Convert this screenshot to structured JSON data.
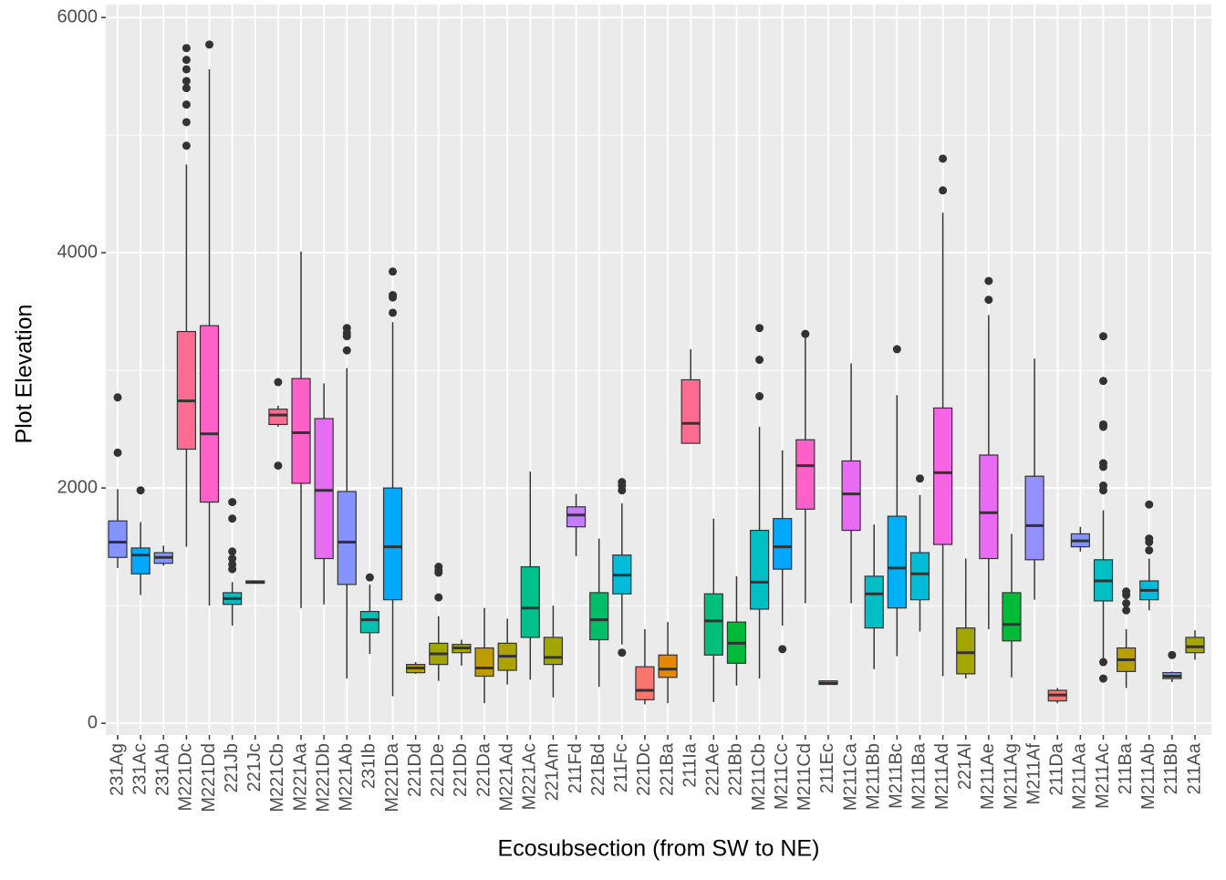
{
  "chart_data": {
    "type": "box",
    "xlabel": "Ecosubsection (from SW to NE)",
    "ylabel": "Plot Elevation",
    "ylim": [
      -100,
      6110
    ],
    "yticks": [
      0,
      2000,
      4000,
      6000
    ],
    "grid": true,
    "categories": [
      "231Ag",
      "231Ac",
      "231Ab",
      "M221Dc",
      "M221Dd",
      "221Jb",
      "221Jc",
      "M221Cb",
      "M221Aa",
      "M221Db",
      "M221Ab",
      "231Ib",
      "M221Da",
      "221Dd",
      "221De",
      "221Db",
      "221Da",
      "M221Ad",
      "M221Ac",
      "221Am",
      "211Fd",
      "221Bd",
      "211Fc",
      "221Dc",
      "221Ba",
      "211Ia",
      "221Ae",
      "221Bb",
      "M211Cb",
      "M211Cc",
      "M211Cd",
      "211Ec",
      "M211Ca",
      "M211Bb",
      "M211Bc",
      "M211Ba",
      "M211Ad",
      "221Al",
      "M211Ae",
      "M211Ag",
      "M211Af",
      "211Da",
      "M211Aa",
      "M211Ac",
      "211Ba",
      "M211Ab",
      "211Bb",
      "211Aa"
    ],
    "colors": [
      "#8494FF",
      "#00A9FF",
      "#8494FF",
      "#FF6C91",
      "#FF61C9",
      "#00BFC4",
      "#00BFC4",
      "#FF6C91",
      "#FF61C9",
      "#E76BF3",
      "#8494FF",
      "#00C0AF",
      "#00A9FF",
      "#B79F00",
      "#A3A500",
      "#A3A500",
      "#C09B00",
      "#ABA300",
      "#00C08B",
      "#A3A500",
      "#C77CFF",
      "#00BE67",
      "#00BCD8",
      "#F8766D",
      "#E58700",
      "#FF6C91",
      "#00BF7D",
      "#00BA38",
      "#00BFC4",
      "#00A9FF",
      "#FF61C9",
      "#FF61C9",
      "#E76BF3",
      "#00BFC4",
      "#00B0F6",
      "#00BCD6",
      "#F564E3",
      "#A3A500",
      "#E76BF3",
      "#00BA38",
      "#9590FF",
      "#F8766D",
      "#8494FF",
      "#00BFC4",
      "#B79F00",
      "#00BCD8",
      "#8494FF",
      "#A3A500"
    ],
    "boxes": [
      {
        "low": 1320,
        "q1": 1410,
        "median": 1540,
        "q3": 1720,
        "high": 1990,
        "outliers": [
          2770,
          2300
        ]
      },
      {
        "low": 1090,
        "q1": 1270,
        "median": 1430,
        "q3": 1490,
        "high": 1710,
        "outliers": [
          1980
        ]
      },
      {
        "low": 1340,
        "q1": 1360,
        "median": 1410,
        "q3": 1450,
        "high": 1510,
        "outliers": []
      },
      {
        "low": 1500,
        "q1": 2330,
        "median": 2740,
        "q3": 3330,
        "high": 4750,
        "outliers": [
          5740,
          5640,
          5560,
          5460,
          5400,
          5260,
          5110,
          4910
        ]
      },
      {
        "low": 1000,
        "q1": 1880,
        "median": 2460,
        "q3": 3380,
        "high": 5560,
        "outliers": [
          5770
        ]
      },
      {
        "low": 830,
        "q1": 1010,
        "median": 1060,
        "q3": 1110,
        "high": 1200,
        "outliers": [
          1880,
          1740,
          1460,
          1400,
          1350,
          1310
        ]
      },
      {
        "low": 1190,
        "q1": 1190,
        "median": 1200,
        "q3": 1210,
        "high": 1210,
        "outliers": []
      },
      {
        "low": 2520,
        "q1": 2540,
        "median": 2620,
        "q3": 2670,
        "high": 2700,
        "outliers": [
          2900,
          2190
        ]
      },
      {
        "low": 980,
        "q1": 2040,
        "median": 2470,
        "q3": 2930,
        "high": 4010,
        "outliers": []
      },
      {
        "low": 1010,
        "q1": 1400,
        "median": 1980,
        "q3": 2590,
        "high": 2890,
        "outliers": []
      },
      {
        "low": 380,
        "q1": 1180,
        "median": 1540,
        "q3": 1970,
        "high": 3020,
        "outliers": [
          3360,
          3320,
          3290,
          3170
        ]
      },
      {
        "low": 590,
        "q1": 770,
        "median": 880,
        "q3": 950,
        "high": 1180,
        "outliers": [
          1240
        ]
      },
      {
        "low": 230,
        "q1": 1050,
        "median": 1500,
        "q3": 2000,
        "high": 3410,
        "outliers": [
          3840,
          3640,
          3620,
          3490
        ]
      },
      {
        "low": 420,
        "q1": 430,
        "median": 470,
        "q3": 500,
        "high": 520,
        "outliers": []
      },
      {
        "low": 360,
        "q1": 500,
        "median": 590,
        "q3": 680,
        "high": 910,
        "outliers": [
          1330,
          1300,
          1280,
          1070
        ]
      },
      {
        "low": 490,
        "q1": 600,
        "median": 640,
        "q3": 670,
        "high": 710,
        "outliers": []
      },
      {
        "low": 170,
        "q1": 400,
        "median": 470,
        "q3": 640,
        "high": 980,
        "outliers": []
      },
      {
        "low": 330,
        "q1": 450,
        "median": 570,
        "q3": 680,
        "high": 890,
        "outliers": []
      },
      {
        "low": 370,
        "q1": 730,
        "median": 980,
        "q3": 1330,
        "high": 2140,
        "outliers": []
      },
      {
        "low": 220,
        "q1": 500,
        "median": 560,
        "q3": 730,
        "high": 1000,
        "outliers": []
      },
      {
        "low": 1420,
        "q1": 1670,
        "median": 1770,
        "q3": 1840,
        "high": 1950,
        "outliers": []
      },
      {
        "low": 310,
        "q1": 710,
        "median": 880,
        "q3": 1110,
        "high": 1570,
        "outliers": []
      },
      {
        "low": 670,
        "q1": 1100,
        "median": 1260,
        "q3": 1430,
        "high": 1870,
        "outliers": [
          2050,
          2020,
          1980,
          600
        ]
      },
      {
        "low": 160,
        "q1": 200,
        "median": 280,
        "q3": 480,
        "high": 800,
        "outliers": []
      },
      {
        "low": 170,
        "q1": 390,
        "median": 460,
        "q3": 580,
        "high": 860,
        "outliers": []
      },
      {
        "low": 2380,
        "q1": 2380,
        "median": 2550,
        "q3": 2920,
        "high": 3180,
        "outliers": []
      },
      {
        "low": 180,
        "q1": 580,
        "median": 870,
        "q3": 1100,
        "high": 1740,
        "outliers": []
      },
      {
        "low": 320,
        "q1": 510,
        "median": 680,
        "q3": 860,
        "high": 1250,
        "outliers": []
      },
      {
        "low": 380,
        "q1": 970,
        "median": 1200,
        "q3": 1640,
        "high": 2520,
        "outliers": [
          3360,
          3090,
          2780
        ]
      },
      {
        "low": 830,
        "q1": 1310,
        "median": 1500,
        "q3": 1740,
        "high": 2320,
        "outliers": [
          630
        ]
      },
      {
        "low": 1020,
        "q1": 1820,
        "median": 2190,
        "q3": 2410,
        "high": 3300,
        "outliers": [
          3310
        ]
      },
      {
        "low": 330,
        "q1": 330,
        "median": 340,
        "q3": 360,
        "high": 360,
        "outliers": []
      },
      {
        "low": 1020,
        "q1": 1640,
        "median": 1950,
        "q3": 2230,
        "high": 3060,
        "outliers": []
      },
      {
        "low": 460,
        "q1": 810,
        "median": 1100,
        "q3": 1250,
        "high": 1690,
        "outliers": []
      },
      {
        "low": 570,
        "q1": 980,
        "median": 1320,
        "q3": 1760,
        "high": 2790,
        "outliers": [
          3180
        ]
      },
      {
        "low": 780,
        "q1": 1050,
        "median": 1270,
        "q3": 1450,
        "high": 1940,
        "outliers": [
          2080
        ]
      },
      {
        "low": 400,
        "q1": 1520,
        "median": 2130,
        "q3": 2680,
        "high": 4340,
        "outliers": [
          4800,
          4530
        ]
      },
      {
        "low": 380,
        "q1": 420,
        "median": 600,
        "q3": 810,
        "high": 1400,
        "outliers": []
      },
      {
        "low": 800,
        "q1": 1400,
        "median": 1790,
        "q3": 2280,
        "high": 3470,
        "outliers": [
          3760,
          3600
        ]
      },
      {
        "low": 390,
        "q1": 700,
        "median": 840,
        "q3": 1110,
        "high": 1610,
        "outliers": []
      },
      {
        "low": 1050,
        "q1": 1390,
        "median": 1680,
        "q3": 2100,
        "high": 3100,
        "outliers": []
      },
      {
        "low": 170,
        "q1": 190,
        "median": 240,
        "q3": 280,
        "high": 300,
        "outliers": []
      },
      {
        "low": 1460,
        "q1": 1500,
        "median": 1550,
        "q3": 1610,
        "high": 1670,
        "outliers": []
      },
      {
        "low": 520,
        "q1": 1040,
        "median": 1210,
        "q3": 1390,
        "high": 1810,
        "outliers": [
          3290,
          2910,
          2540,
          2520,
          2210,
          2180,
          2020,
          1980,
          520,
          380
        ]
      },
      {
        "low": 300,
        "q1": 440,
        "median": 540,
        "q3": 640,
        "high": 800,
        "outliers": [
          1120,
          1090,
          1020,
          960
        ]
      },
      {
        "low": 960,
        "q1": 1050,
        "median": 1130,
        "q3": 1210,
        "high": 1400,
        "outliers": [
          1860,
          1570,
          1540,
          1470
        ]
      },
      {
        "low": 350,
        "q1": 380,
        "median": 400,
        "q3": 430,
        "high": 440,
        "outliers": [
          580
        ]
      },
      {
        "low": 540,
        "q1": 600,
        "median": 650,
        "q3": 730,
        "high": 790,
        "outliers": []
      }
    ]
  }
}
